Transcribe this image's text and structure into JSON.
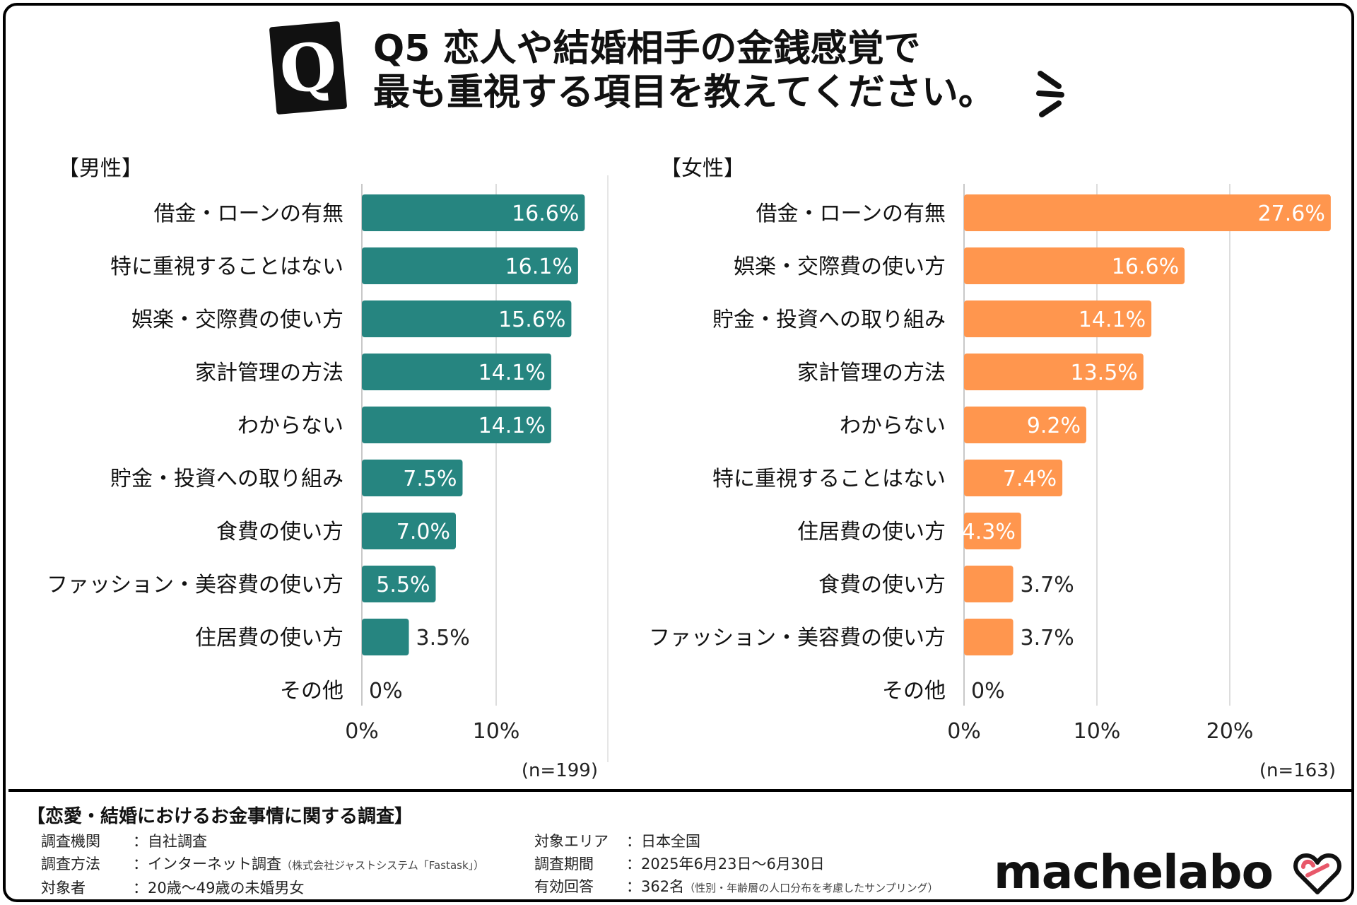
{
  "header": {
    "badge": "Q",
    "title_line1": "Q5  恋人や結婚相手の金銭感覚で",
    "title_line2": "最も重視する項目を教えてください。"
  },
  "colors": {
    "male": "#268580",
    "female": "#FF964E",
    "grid": "#dddddd"
  },
  "chart_data": [
    {
      "type": "bar",
      "orientation": "horizontal",
      "title": "【男性】",
      "categories": [
        "借金・ローンの有無",
        "特に重視することはない",
        "娯楽・交際費の使い方",
        "家計管理の方法",
        "わからない",
        "貯金・投資への取り組み",
        "食費の使い方",
        "ファッション・美容費の使い方",
        "住居費の使い方",
        "その他"
      ],
      "values": [
        16.6,
        16.1,
        15.6,
        14.1,
        14.1,
        7.5,
        7.0,
        5.5,
        3.5,
        0
      ],
      "labels": [
        "16.6%",
        "16.1%",
        "15.6%",
        "14.1%",
        "14.1%",
        "7.5%",
        "7.0%",
        "5.5%",
        "3.5%",
        "0%"
      ],
      "xticks": [
        "0%",
        "10%"
      ],
      "xlim": [
        0,
        17
      ],
      "grid": true,
      "sample": "(n=199)"
    },
    {
      "type": "bar",
      "orientation": "horizontal",
      "title": "【女性】",
      "categories": [
        "借金・ローンの有無",
        "娯楽・交際費の使い方",
        "貯金・投資への取り組み",
        "家計管理の方法",
        "わからない",
        "特に重視することはない",
        "住居費の使い方",
        "食費の使い方",
        "ファッション・美容費の使い方",
        "その他"
      ],
      "values": [
        27.6,
        16.6,
        14.1,
        13.5,
        9.2,
        7.4,
        4.3,
        3.7,
        3.7,
        0
      ],
      "labels": [
        "27.6%",
        "16.6%",
        "14.1%",
        "13.5%",
        "9.2%",
        "7.4%",
        "4.3%",
        "3.7%",
        "3.7%",
        "0%"
      ],
      "xticks": [
        "0%",
        "10%",
        "20%"
      ],
      "xlim": [
        0,
        28
      ],
      "grid": true,
      "sample": "(n=163)"
    }
  ],
  "footer": {
    "survey_title": "【恋愛・結婚におけるお金事情に関する調査】",
    "left": [
      {
        "k": "調査機関",
        "v": "：自社調査",
        "note": ""
      },
      {
        "k": "調査方法",
        "v": "：インターネット調査",
        "note": "（株式会社ジャストシステム「Fastask」）"
      },
      {
        "k": "対象者",
        "v": "：20歳〜49歳の未婚男女",
        "note": ""
      }
    ],
    "right": [
      {
        "k": "対象エリア",
        "v": "：日本全国",
        "note": ""
      },
      {
        "k": "調査期間",
        "v": "：2025年6月23日〜6月30日",
        "note": ""
      },
      {
        "k": "有効回答",
        "v": "：362名",
        "note": "（性別・年齢層の人口分布を考慮したサンプリング）"
      }
    ],
    "brand": "machelabo"
  }
}
